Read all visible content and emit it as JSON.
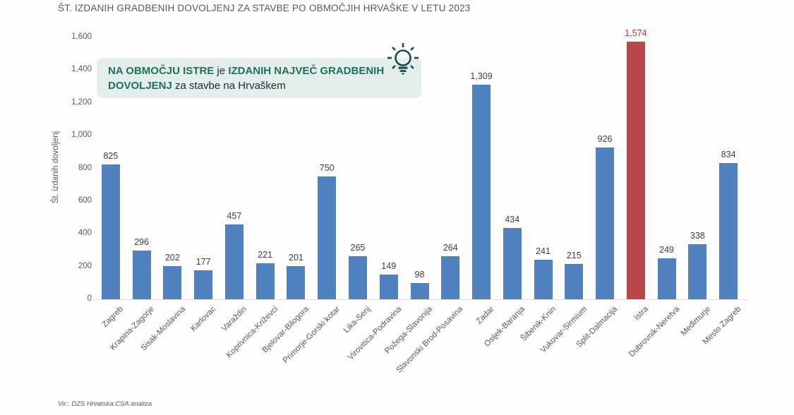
{
  "page": {
    "title": "ŠT. IZDANIH GRADBENIH DOVOLJENJ ZA STAVBE PO OBMOČJIH HRVAŠKE V LETU 2023",
    "source": "Vir:. DZS Hrvatska.CSA analiza"
  },
  "callout": {
    "icon": "lightbulb-icon",
    "icon_color": "#17504a",
    "background": "#e3eeea",
    "bold_1": "NA OBMOČJU ISTRE",
    "regular_1": " je ",
    "bold_2": "IZDANIH NAJVEČ GRADBENIH DOVOLJENJ",
    "regular_2": " za stavbe na Hrvaškem"
  },
  "chart_data": {
    "type": "bar",
    "title": "ŠT. IZDANIH GRADBENIH DOVOLJENJ ZA STAVBE PO OBMOČJIH HRVAŠKE V LETU 2023",
    "xlabel": "",
    "ylabel": "Št. izdanih dovoljenj",
    "ylim": [
      0,
      1600
    ],
    "ytick_step": 200,
    "ytick_labels": [
      "0",
      "200",
      "400",
      "600",
      "800",
      "1,000",
      "1,200",
      "1,400",
      "1,600"
    ],
    "grid": false,
    "legend_position": "none",
    "categories": [
      "Zagreb",
      "Krapina-Zagorje",
      "Sisak-Moslavina",
      "Karlovac",
      "Varaždin",
      "Koprivnica-Križevci",
      "Bjelovar-Bilogora",
      "Primorje-Gorski kotar",
      "Lika-Senj",
      "Virovitica-Podravina",
      "Požega-Slavonija",
      "Slavonski Brod-Posavina",
      "Zadar",
      "Osijek-Baranja",
      "Šibenik-Knin",
      "Vukovar-Sirmium",
      "Split-Dalmacija",
      "Istra",
      "Dubrovnik-Neretva",
      "Međimurje",
      "Mesto Zagreb"
    ],
    "values": [
      825,
      296,
      202,
      177,
      457,
      221,
      201,
      750,
      265,
      149,
      98,
      264,
      1309,
      434,
      241,
      215,
      926,
      1574,
      249,
      338,
      834
    ],
    "highlight_index": 17,
    "colors": {
      "default": "#4e81bd",
      "highlight": "#b9474b",
      "label": "#3f3f3f",
      "highlight_label": "#b03a3c",
      "axis_text": "#595959",
      "baseline": "#d9d9d9"
    }
  }
}
